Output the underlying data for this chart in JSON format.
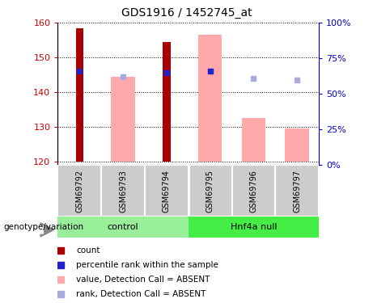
{
  "title": "GDS1916 / 1452745_at",
  "samples": [
    "GSM69792",
    "GSM69793",
    "GSM69794",
    "GSM69795",
    "GSM69796",
    "GSM69797"
  ],
  "ylim_left": [
    119,
    160
  ],
  "ylim_right": [
    0,
    100
  ],
  "yticks_left": [
    120,
    130,
    140,
    150,
    160
  ],
  "yticks_right": [
    0,
    25,
    50,
    75,
    100
  ],
  "bar_bottom": 120,
  "red_bar_values": [
    158.5,
    null,
    154.5,
    null,
    null,
    null
  ],
  "pink_bar_values": [
    null,
    144.5,
    null,
    156.5,
    132.5,
    129.5
  ],
  "blue_square_values": [
    146.0,
    null,
    145.5,
    146.0,
    null,
    null
  ],
  "lavender_square_values": [
    null,
    144.5,
    null,
    146.0,
    144.0,
    143.5
  ],
  "red_bar_color": "#aa0000",
  "pink_bar_color": "#ffaaaa",
  "blue_square_color": "#2222cc",
  "lavender_square_color": "#aaaadd",
  "control_group_color": "#99ee99",
  "hnf4a_group_color": "#44ee44",
  "sample_label_bg": "#cccccc",
  "left_axis_color": "#cc0000",
  "right_axis_color": "#0000cc",
  "legend_items": [
    {
      "label": "count",
      "color": "#aa0000"
    },
    {
      "label": "percentile rank within the sample",
      "color": "#2222cc"
    },
    {
      "label": "value, Detection Call = ABSENT",
      "color": "#ffaaaa"
    },
    {
      "label": "rank, Detection Call = ABSENT",
      "color": "#aaaadd"
    }
  ]
}
